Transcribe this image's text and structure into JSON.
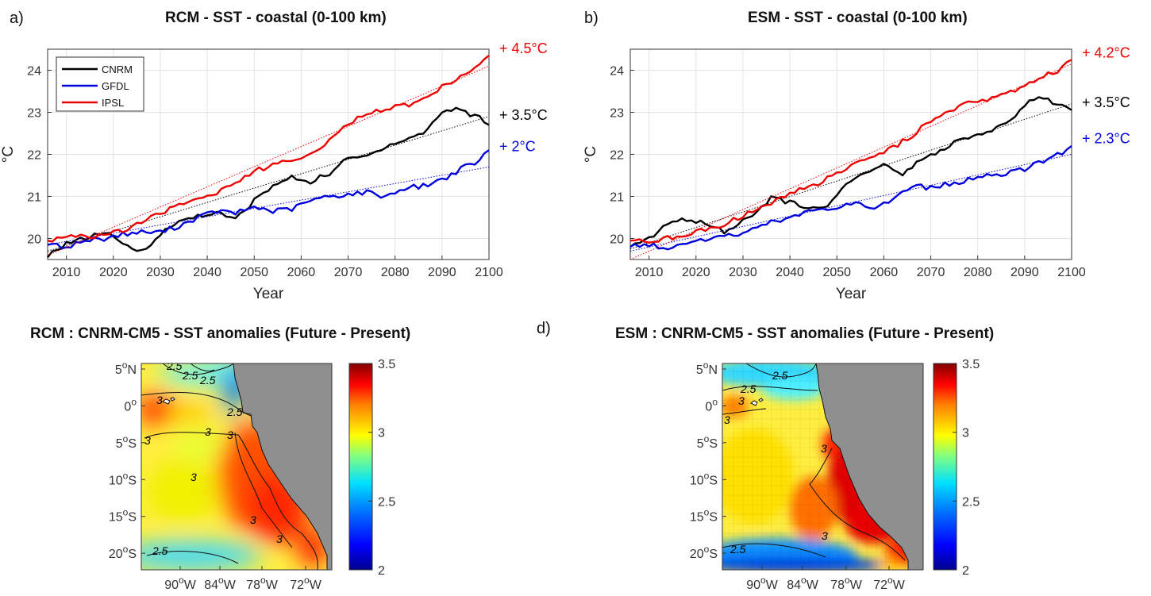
{
  "panel_labels": {
    "a": "a)",
    "b": "b)",
    "d": "d)"
  },
  "chart_data": [
    {
      "type": "line",
      "title": "RCM - SST - coastal (0-100 km)",
      "xlabel": "Year",
      "ylabel": "°C",
      "xlim": [
        2006,
        2100
      ],
      "ylim": [
        19.5,
        24.5
      ],
      "xticks": [
        2010,
        2020,
        2030,
        2040,
        2050,
        2060,
        2070,
        2080,
        2090,
        2100
      ],
      "yticks": [
        20,
        21,
        22,
        23,
        24
      ],
      "grid": true,
      "legend": "top-left",
      "series": [
        {
          "name": "CNRM",
          "color": "#000000",
          "end_label": "+ 3.5°C",
          "knots": [
            [
              2006,
              19.55
            ],
            [
              2010,
              19.9
            ],
            [
              2014,
              20.0
            ],
            [
              2018,
              20.15
            ],
            [
              2020,
              20.0
            ],
            [
              2023,
              19.8
            ],
            [
              2026,
              19.7
            ],
            [
              2030,
              20.1
            ],
            [
              2034,
              20.4
            ],
            [
              2038,
              20.55
            ],
            [
              2042,
              20.6
            ],
            [
              2046,
              20.45
            ],
            [
              2050,
              20.9
            ],
            [
              2054,
              21.25
            ],
            [
              2058,
              21.45
            ],
            [
              2062,
              21.35
            ],
            [
              2066,
              21.55
            ],
            [
              2070,
              21.9
            ],
            [
              2074,
              21.95
            ],
            [
              2078,
              22.2
            ],
            [
              2082,
              22.35
            ],
            [
              2086,
              22.5
            ],
            [
              2090,
              23.0
            ],
            [
              2093,
              23.1
            ],
            [
              2096,
              22.95
            ],
            [
              2098,
              22.9
            ],
            [
              2100,
              22.7
            ]
          ],
          "trend": [
            19.7,
            22.9
          ]
        },
        {
          "name": "GFDL",
          "color": "#0000dd",
          "end_label": "+ 2°C",
          "knots": [
            [
              2006,
              19.85
            ],
            [
              2010,
              19.8
            ],
            [
              2014,
              19.95
            ],
            [
              2018,
              20.0
            ],
            [
              2022,
              20.1
            ],
            [
              2026,
              20.15
            ],
            [
              2030,
              20.15
            ],
            [
              2034,
              20.3
            ],
            [
              2038,
              20.5
            ],
            [
              2042,
              20.65
            ],
            [
              2046,
              20.6
            ],
            [
              2050,
              20.75
            ],
            [
              2054,
              20.65
            ],
            [
              2058,
              20.7
            ],
            [
              2062,
              20.9
            ],
            [
              2066,
              21.0
            ],
            [
              2070,
              21.05
            ],
            [
              2074,
              21.1
            ],
            [
              2078,
              21.0
            ],
            [
              2082,
              21.2
            ],
            [
              2086,
              21.25
            ],
            [
              2090,
              21.4
            ],
            [
              2094,
              21.65
            ],
            [
              2098,
              21.85
            ],
            [
              2100,
              22.1
            ]
          ],
          "trend": [
            19.85,
            21.7
          ]
        },
        {
          "name": "IPSL",
          "color": "#ee0000",
          "end_label": "+ 4.5°C",
          "knots": [
            [
              2006,
              19.95
            ],
            [
              2010,
              20.05
            ],
            [
              2014,
              20.05
            ],
            [
              2018,
              20.05
            ],
            [
              2022,
              20.2
            ],
            [
              2026,
              20.4
            ],
            [
              2030,
              20.6
            ],
            [
              2034,
              20.8
            ],
            [
              2038,
              20.95
            ],
            [
              2042,
              21.1
            ],
            [
              2046,
              21.3
            ],
            [
              2050,
              21.6
            ],
            [
              2054,
              21.75
            ],
            [
              2058,
              21.9
            ],
            [
              2062,
              22.0
            ],
            [
              2066,
              22.3
            ],
            [
              2070,
              22.75
            ],
            [
              2074,
              22.95
            ],
            [
              2078,
              23.1
            ],
            [
              2082,
              23.15
            ],
            [
              2086,
              23.3
            ],
            [
              2090,
              23.6
            ],
            [
              2094,
              23.85
            ],
            [
              2098,
              24.1
            ],
            [
              2100,
              24.35
            ]
          ],
          "trend": [
            19.6,
            24.1
          ]
        }
      ]
    },
    {
      "type": "line",
      "title": "ESM - SST - coastal (0-100 km)",
      "xlabel": "Year",
      "ylabel": "°C",
      "xlim": [
        2006,
        2100
      ],
      "ylim": [
        19.5,
        24.5
      ],
      "xticks": [
        2010,
        2020,
        2030,
        2040,
        2050,
        2060,
        2070,
        2080,
        2090,
        2100
      ],
      "yticks": [
        20,
        21,
        22,
        23,
        24
      ],
      "grid": true,
      "series": [
        {
          "name": "CNRM",
          "color": "#000000",
          "end_label": "+ 3.5°C",
          "knots": [
            [
              2006,
              19.8
            ],
            [
              2010,
              20.0
            ],
            [
              2014,
              20.4
            ],
            [
              2018,
              20.45
            ],
            [
              2022,
              20.35
            ],
            [
              2026,
              20.15
            ],
            [
              2030,
              20.4
            ],
            [
              2034,
              20.75
            ],
            [
              2036,
              20.95
            ],
            [
              2040,
              20.85
            ],
            [
              2044,
              20.75
            ],
            [
              2048,
              20.8
            ],
            [
              2052,
              21.25
            ],
            [
              2056,
              21.6
            ],
            [
              2060,
              21.75
            ],
            [
              2064,
              21.55
            ],
            [
              2068,
              21.85
            ],
            [
              2072,
              22.1
            ],
            [
              2076,
              22.35
            ],
            [
              2080,
              22.5
            ],
            [
              2084,
              22.6
            ],
            [
              2088,
              22.95
            ],
            [
              2092,
              23.35
            ],
            [
              2096,
              23.25
            ],
            [
              2098,
              23.2
            ],
            [
              2100,
              23.05
            ]
          ],
          "trend": [
            19.75,
            23.2
          ]
        },
        {
          "name": "GFDL",
          "color": "#0000dd",
          "end_label": "+ 2.3°C",
          "knots": [
            [
              2006,
              19.8
            ],
            [
              2010,
              19.85
            ],
            [
              2014,
              19.75
            ],
            [
              2018,
              19.9
            ],
            [
              2022,
              20.0
            ],
            [
              2026,
              20.05
            ],
            [
              2030,
              20.1
            ],
            [
              2034,
              20.3
            ],
            [
              2038,
              20.45
            ],
            [
              2042,
              20.55
            ],
            [
              2046,
              20.7
            ],
            [
              2050,
              20.75
            ],
            [
              2054,
              20.85
            ],
            [
              2058,
              20.75
            ],
            [
              2062,
              20.95
            ],
            [
              2066,
              21.25
            ],
            [
              2070,
              21.2
            ],
            [
              2074,
              21.3
            ],
            [
              2078,
              21.4
            ],
            [
              2082,
              21.5
            ],
            [
              2086,
              21.55
            ],
            [
              2090,
              21.65
            ],
            [
              2094,
              21.85
            ],
            [
              2098,
              22.05
            ],
            [
              2100,
              22.2
            ]
          ],
          "trend": [
            19.7,
            22.0
          ]
        },
        {
          "name": "IPSL",
          "color": "#ee0000",
          "end_label": "+ 4.2°C",
          "knots": [
            [
              2006,
              19.95
            ],
            [
              2010,
              19.95
            ],
            [
              2014,
              20.0
            ],
            [
              2018,
              20.1
            ],
            [
              2022,
              20.2
            ],
            [
              2026,
              20.35
            ],
            [
              2030,
              20.55
            ],
            [
              2034,
              20.75
            ],
            [
              2038,
              20.95
            ],
            [
              2042,
              21.15
            ],
            [
              2046,
              21.3
            ],
            [
              2050,
              21.55
            ],
            [
              2054,
              21.75
            ],
            [
              2058,
              21.95
            ],
            [
              2062,
              22.15
            ],
            [
              2066,
              22.45
            ],
            [
              2070,
              22.8
            ],
            [
              2074,
              23.05
            ],
            [
              2078,
              23.2
            ],
            [
              2082,
              23.3
            ],
            [
              2086,
              23.45
            ],
            [
              2090,
              23.65
            ],
            [
              2094,
              23.85
            ],
            [
              2098,
              24.05
            ],
            [
              2100,
              24.25
            ]
          ],
          "trend": [
            19.5,
            24.15
          ]
        }
      ]
    },
    {
      "type": "heatmap",
      "title": "RCM : CNRM-CM5 - SST anomalies (Future - Present)",
      "colorbar_range": [
        2,
        3.5
      ],
      "colorbar_ticks": [
        "3.5",
        "3",
        "2.5",
        "2"
      ],
      "yticks": [
        "5oN",
        "0o",
        "5oS",
        "10oS",
        "15oS",
        "20oS"
      ],
      "xticks": [
        "90oW",
        "84oW",
        "78oW",
        "72oW"
      ],
      "contour_labels": [
        "2.5",
        "2.5",
        "2.5",
        "2.5",
        "3",
        "3",
        "3",
        "3",
        "3",
        "3",
        "3",
        "2.5"
      ]
    },
    {
      "type": "heatmap",
      "title": "ESM : CNRM-CM5 - SST anomalies (Future - Present)",
      "colorbar_range": [
        2,
        3.5
      ],
      "colorbar_ticks": [
        "3.5",
        "3",
        "2.5",
        "2"
      ],
      "yticks": [
        "5oN",
        "0o",
        "5oS",
        "10oS",
        "15oS",
        "20oS"
      ],
      "xticks": [
        "90oW",
        "84oW",
        "78oW",
        "72oW"
      ],
      "contour_labels": [
        "2.5",
        "2.5",
        "3",
        "3",
        "3",
        "3",
        "2.5"
      ]
    }
  ]
}
